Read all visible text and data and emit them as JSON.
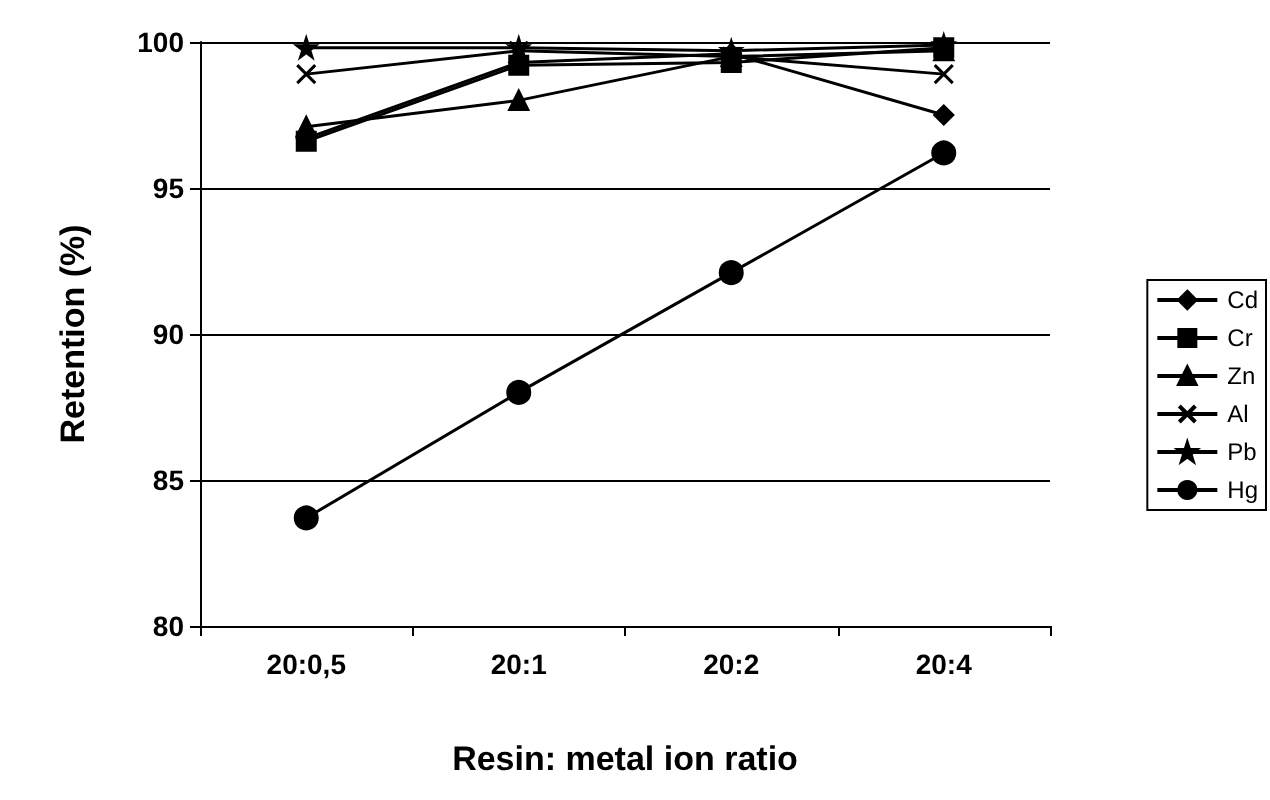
{
  "chart_data": {
    "type": "line",
    "xlabel": "Resin: metal ion ratio",
    "ylabel": "Retention (%)",
    "categories": [
      "20:0,5",
      "20:1",
      "20:2",
      "20:4"
    ],
    "ylim": [
      80,
      100
    ],
    "yticks": [
      80,
      85,
      90,
      95,
      100
    ],
    "grid": "y",
    "legend": "right",
    "line_style": "solid",
    "series": [
      {
        "name": "Cd",
        "color": "#000000",
        "marker": "diamond",
        "values": [
          96.7,
          99.3,
          99.6,
          97.5
        ]
      },
      {
        "name": "Cr",
        "color": "#000000",
        "marker": "square",
        "values": [
          96.6,
          99.2,
          99.3,
          99.8
        ]
      },
      {
        "name": "Zn",
        "color": "#000000",
        "marker": "triangle",
        "values": [
          97.1,
          98.0,
          99.5,
          99.7
        ]
      },
      {
        "name": "Al",
        "color": "#000000",
        "marker": "cross",
        "values": [
          98.9,
          99.7,
          99.5,
          98.9
        ]
      },
      {
        "name": "Pb",
        "color": "#000000",
        "marker": "star",
        "values": [
          99.8,
          99.8,
          99.7,
          99.9
        ]
      },
      {
        "name": "Hg",
        "color": "#000000",
        "marker": "circle",
        "values": [
          83.7,
          88.0,
          92.1,
          96.2
        ]
      }
    ]
  }
}
